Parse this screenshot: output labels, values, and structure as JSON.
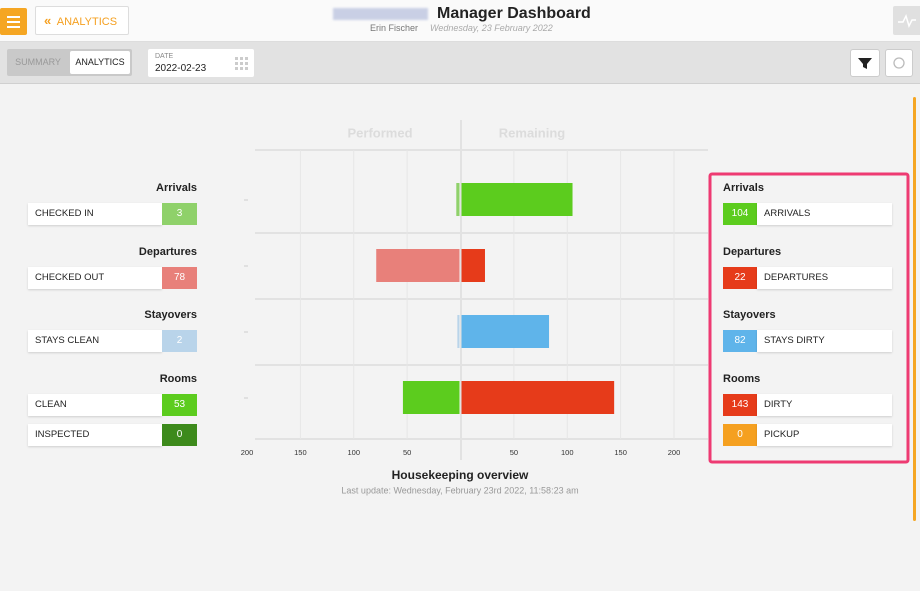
{
  "header": {
    "back_button": "ANALYTICS",
    "title": "Manager Dashboard",
    "user": "Erin Fischer",
    "date": "Wednesday, 23 February 2022"
  },
  "toolbar": {
    "tabs": [
      "SUMMARY",
      "ANALYTICS"
    ],
    "active_tab": 1,
    "date_label": "DATE",
    "date_value": "2022-02-23"
  },
  "chart": {
    "column_headers": [
      "Performed",
      "Remaining"
    ],
    "title": "Housekeeping overview",
    "last_update": "Last update: Wednesday, February 23rd 2022, 11:58:23 am",
    "xlim": [
      -200,
      200
    ],
    "xticks": [
      {
        "value": -200,
        "label": "200"
      },
      {
        "value": -150,
        "label": "150"
      },
      {
        "value": -100,
        "label": "100"
      },
      {
        "value": -50,
        "label": "50"
      },
      50,
      100,
      150,
      200
    ]
  },
  "groups": [
    {
      "name": "Arrivals",
      "performed": [
        {
          "label": "CHECKED IN",
          "value": 3,
          "color": "#8fd16a"
        }
      ],
      "remaining": [
        {
          "label": "ARRIVALS",
          "value": 104,
          "color": "#5ccc1e"
        }
      ]
    },
    {
      "name": "Departures",
      "performed": [
        {
          "label": "CHECKED OUT",
          "value": 78,
          "color": "#e8807a"
        }
      ],
      "remaining": [
        {
          "label": "DEPARTURES",
          "value": 22,
          "color": "#e63b1a"
        }
      ]
    },
    {
      "name": "Stayovers",
      "performed": [
        {
          "label": "STAYS CLEAN",
          "value": 2,
          "color": "#b9d4ea"
        }
      ],
      "remaining": [
        {
          "label": "STAYS DIRTY",
          "value": 82,
          "color": "#5fb4ea"
        }
      ]
    },
    {
      "name": "Rooms",
      "performed": [
        {
          "label": "CLEAN",
          "value": 53,
          "color": "#5ccc1e"
        },
        {
          "label": "INSPECTED",
          "value": 0,
          "color": "#3d8a1c"
        }
      ],
      "remaining": [
        {
          "label": "DIRTY",
          "value": 143,
          "color": "#e63b1a"
        },
        {
          "label": "PICKUP",
          "value": 0,
          "color": "#f5a020"
        }
      ]
    }
  ]
}
